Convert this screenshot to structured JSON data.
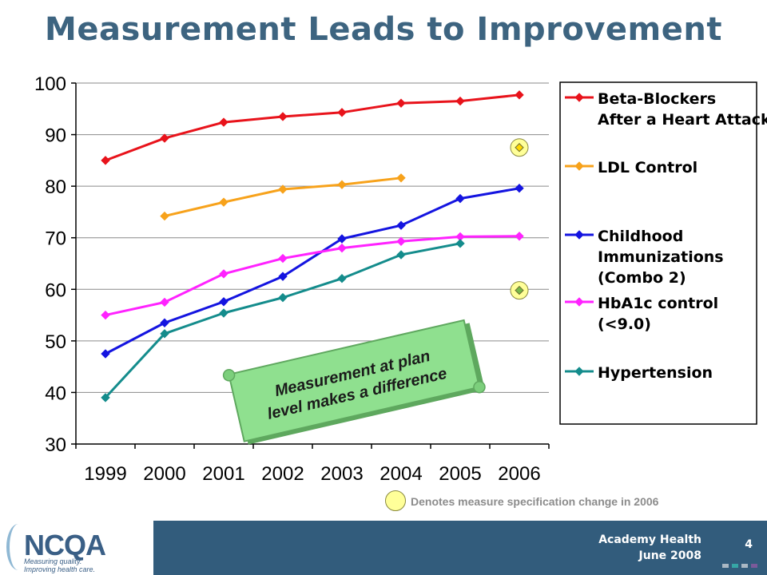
{
  "title": "Measurement Leads to Improvement",
  "chart_data": {
    "type": "line",
    "x": [
      "1999",
      "2000",
      "2001",
      "2002",
      "2003",
      "2004",
      "2005",
      "2006"
    ],
    "ylim": [
      30,
      100
    ],
    "yticks": [
      30,
      40,
      50,
      60,
      70,
      80,
      90,
      100
    ],
    "grid": true,
    "legend_position": "right",
    "series": [
      {
        "name": "Beta-Blockers After a Heart Attack",
        "label_lines": [
          "Beta-Blockers",
          "After a Heart Attack"
        ],
        "color": "#e8131b",
        "values": [
          85.0,
          89.3,
          92.4,
          93.5,
          94.3,
          96.1,
          96.5,
          97.7
        ]
      },
      {
        "name": "LDL Control",
        "label_lines": [
          "LDL Control"
        ],
        "color": "#f7a21b",
        "values": [
          null,
          74.2,
          76.9,
          79.4,
          80.3,
          81.6,
          null,
          null
        ],
        "special_2006": 87.5,
        "special_color": "#ffd700"
      },
      {
        "name": "Childhood Immunizations (Combo 2)",
        "label_lines": [
          "Childhood",
          "Immunizations",
          "(Combo 2)"
        ],
        "color": "#1414e0",
        "values": [
          47.5,
          53.5,
          57.6,
          62.5,
          69.8,
          72.4,
          77.6,
          79.6
        ]
      },
      {
        "name": "HbA1c control (<9.0)",
        "label_lines": [
          "HbA1c control",
          "(<9.0)"
        ],
        "color": "#ff22ff",
        "values": [
          55.0,
          57.5,
          63.0,
          66.0,
          68.0,
          69.3,
          70.2,
          70.3
        ]
      },
      {
        "name": "Hypertension",
        "label_lines": [
          "Hypertension"
        ],
        "color": "#148c8c",
        "values": [
          39.0,
          51.4,
          55.4,
          58.4,
          62.1,
          66.7,
          68.9,
          null
        ],
        "special_2006": 59.8,
        "special_color": "#77b84a"
      }
    ],
    "annotation": [
      "Measurement at plan",
      "level makes a difference"
    ]
  },
  "note": "Denotes measure specification change in 2006",
  "footer": {
    "org_line1": "Academy Health",
    "org_line2": "June 2008",
    "page": "4",
    "logo_text": "NCQA",
    "logo_tag1": "Measuring quality.",
    "logo_tag2": "Improving health care."
  }
}
